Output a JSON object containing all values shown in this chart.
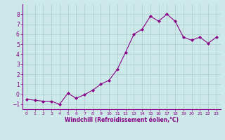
{
  "x": [
    0,
    1,
    2,
    3,
    4,
    5,
    6,
    7,
    8,
    9,
    10,
    11,
    12,
    13,
    14,
    15,
    16,
    17,
    18,
    19,
    20,
    21,
    22,
    23
  ],
  "y": [
    -0.5,
    -0.6,
    -0.7,
    -0.7,
    -1.0,
    0.1,
    -0.4,
    -0.05,
    0.4,
    1.0,
    1.4,
    2.5,
    4.2,
    6.0,
    6.5,
    7.8,
    7.3,
    8.0,
    7.3,
    5.7,
    5.4,
    5.7,
    5.1,
    5.7
  ],
  "line_color": "#880088",
  "marker": "D",
  "marker_size": 2,
  "bg_color": "#cce8e8",
  "grid_color": "#aacccc",
  "xlabel": "Windchill (Refroidissement éolien,°C)",
  "xlabel_color": "#880088",
  "tick_color": "#880088",
  "ylim": [
    -1.5,
    9.0
  ],
  "xlim": [
    -0.5,
    23.5
  ],
  "yticks": [
    -1,
    0,
    1,
    2,
    3,
    4,
    5,
    6,
    7,
    8
  ],
  "xticks": [
    0,
    1,
    2,
    3,
    4,
    5,
    6,
    7,
    8,
    9,
    10,
    11,
    12,
    13,
    14,
    15,
    16,
    17,
    18,
    19,
    20,
    21,
    22,
    23
  ]
}
